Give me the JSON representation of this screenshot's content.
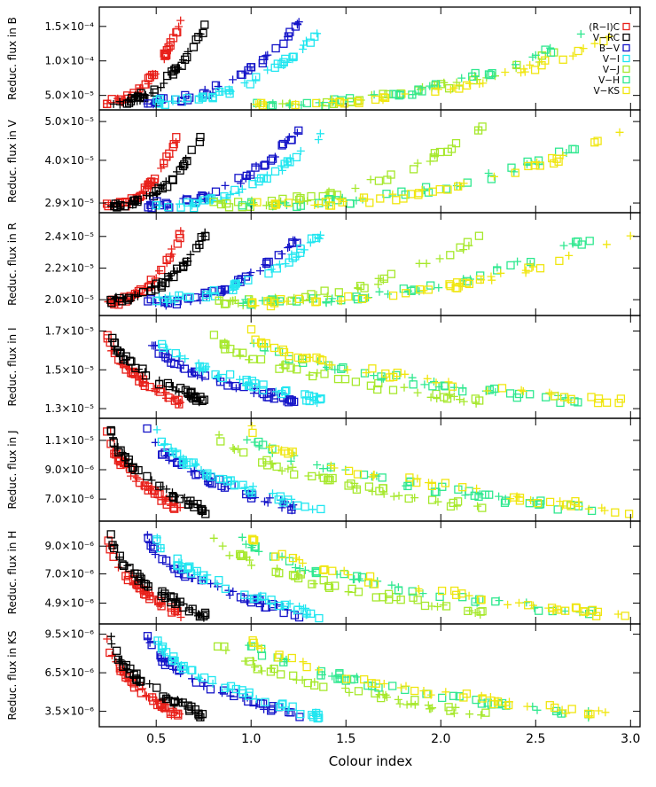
{
  "chart_data": {
    "type": "scatter",
    "xlabel": "Colour index",
    "xlim": [
      0.2,
      3.05
    ],
    "xticks": [
      "0.5",
      "1.0",
      "1.5",
      "2.0",
      "2.5",
      "3.0"
    ],
    "legend": {
      "position": "top-right",
      "entries": [
        {
          "label": "(R−I)C",
          "color": "#e8201a"
        },
        {
          "label": "V−RC",
          "color": "#000000"
        },
        {
          "label": "B−V",
          "color": "#1414c8"
        },
        {
          "label": "V−I",
          "color": "#22e6f0"
        },
        {
          "label": "V−J",
          "color": "#a6e82c"
        },
        {
          "label": "V−H",
          "color": "#30e890"
        },
        {
          "label": "V−KS",
          "color": "#f0e610"
        }
      ]
    },
    "panels": [
      {
        "ylabel": "Reduc. flux in B",
        "ylim": [
          2.9e-05,
          0.000178
        ],
        "yticks": [
          {
            "value": 5e-05,
            "label": "5.0×10⁻⁵"
          },
          {
            "value": 0.0001,
            "label": "1.0×10⁻⁴"
          },
          {
            "value": 0.00015,
            "label": "1.5×10⁻⁴"
          }
        ],
        "shape": "rise",
        "series": [
          {
            "name": "(R−I)C",
            "color": "#e8201a",
            "x_start": 0.24,
            "x_end": 0.63,
            "y_start": 4e-05,
            "y_end": 0.000158
          },
          {
            "name": "V−RC",
            "color": "#000000",
            "x_start": 0.26,
            "x_end": 0.76,
            "y_start": 4e-05,
            "y_end": 0.000152
          },
          {
            "name": "B−V",
            "color": "#1414c8",
            "x_start": 0.45,
            "x_end": 1.26,
            "y_start": 4.2e-05,
            "y_end": 0.000156
          },
          {
            "name": "V−I",
            "color": "#22e6f0",
            "x_start": 0.5,
            "x_end": 1.37,
            "y_start": 4e-05,
            "y_end": 0.000145
          },
          {
            "name": "V−J",
            "color": "#a6e82c",
            "x_start": 0.8,
            "x_end": 2.6,
            "y_start": 3.2e-05,
            "y_end": 0.00011
          },
          {
            "name": "V−H",
            "color": "#30e890",
            "x_start": 0.95,
            "x_end": 2.8,
            "y_start": 3.5e-05,
            "y_end": 0.000145
          },
          {
            "name": "V−KS",
            "color": "#f0e610",
            "x_start": 1.0,
            "x_end": 2.95,
            "y_start": 3.6e-05,
            "y_end": 0.000138
          }
        ]
      },
      {
        "ylabel": "Reduc. flux in V",
        "ylim": [
          2.65e-05,
          5.3e-05
        ],
        "yticks": [
          {
            "value": 2.9e-05,
            "label": "2.9×10⁻⁵"
          },
          {
            "value": 4e-05,
            "label": "4.0×10⁻⁵"
          },
          {
            "value": 5e-05,
            "label": "5.0×10⁻⁵"
          }
        ],
        "shape": "rise",
        "series": [
          {
            "name": "(R−I)C",
            "color": "#e8201a",
            "x_start": 0.24,
            "x_end": 0.63,
            "y_start": 2.8e-05,
            "y_end": 4.8e-05
          },
          {
            "name": "V−RC",
            "color": "#000000",
            "x_start": 0.26,
            "x_end": 0.76,
            "y_start": 2.8e-05,
            "y_end": 4.8e-05
          },
          {
            "name": "B−V",
            "color": "#1414c8",
            "x_start": 0.45,
            "x_end": 1.26,
            "y_start": 2.85e-05,
            "y_end": 4.85e-05
          },
          {
            "name": "V−I",
            "color": "#22e6f0",
            "x_start": 0.5,
            "x_end": 1.37,
            "y_start": 2.8e-05,
            "y_end": 4.7e-05
          },
          {
            "name": "V−J",
            "color": "#a6e82c",
            "x_start": 0.8,
            "x_end": 2.25,
            "y_start": 2.85e-05,
            "y_end": 4.9e-05
          },
          {
            "name": "V−H",
            "color": "#30e890",
            "x_start": 0.95,
            "x_end": 2.8,
            "y_start": 2.85e-05,
            "y_end": 4.5e-05
          },
          {
            "name": "V−KS",
            "color": "#f0e610",
            "x_start": 1.0,
            "x_end": 3.0,
            "y_start": 2.85e-05,
            "y_end": 4.8e-05
          }
        ]
      },
      {
        "ylabel": "Reduc. flux in R",
        "ylim": [
          1.9e-05,
          2.55e-05
        ],
        "yticks": [
          {
            "value": 2e-05,
            "label": "2.0×10⁻⁵"
          },
          {
            "value": 2.2e-05,
            "label": "2.2×10⁻⁵"
          },
          {
            "value": 2.4e-05,
            "label": "2.4×10⁻⁵"
          }
        ],
        "shape": "rise",
        "series": [
          {
            "name": "(R−I)C",
            "color": "#e8201a",
            "x_start": 0.24,
            "x_end": 0.63,
            "y_start": 1.98e-05,
            "y_end": 2.42e-05
          },
          {
            "name": "V−RC",
            "color": "#000000",
            "x_start": 0.26,
            "x_end": 0.76,
            "y_start": 2e-05,
            "y_end": 2.42e-05
          },
          {
            "name": "B−V",
            "color": "#1414c8",
            "x_start": 0.45,
            "x_end": 1.26,
            "y_start": 1.98e-05,
            "y_end": 2.4e-05
          },
          {
            "name": "V−I",
            "color": "#22e6f0",
            "x_start": 0.5,
            "x_end": 1.37,
            "y_start": 2e-05,
            "y_end": 2.42e-05
          },
          {
            "name": "V−J",
            "color": "#a6e82c",
            "x_start": 0.8,
            "x_end": 2.25,
            "y_start": 1.98e-05,
            "y_end": 2.42e-05
          },
          {
            "name": "V−H",
            "color": "#30e890",
            "x_start": 0.95,
            "x_end": 2.8,
            "y_start": 1.98e-05,
            "y_end": 2.4e-05
          },
          {
            "name": "V−KS",
            "color": "#f0e610",
            "x_start": 1.0,
            "x_end": 3.0,
            "y_start": 1.98e-05,
            "y_end": 2.42e-05
          }
        ]
      },
      {
        "ylabel": "Reduc. flux in I",
        "ylim": [
          1.25e-05,
          1.78e-05
        ],
        "yticks": [
          {
            "value": 1.3e-05,
            "label": "1.3×10⁻⁵"
          },
          {
            "value": 1.5e-05,
            "label": "1.5×10⁻⁵"
          },
          {
            "value": 1.7e-05,
            "label": "1.7×10⁻⁵"
          }
        ],
        "shape": "fall",
        "series": [
          {
            "name": "(R−I)C",
            "color": "#e8201a",
            "x_start": 0.24,
            "x_end": 0.63,
            "y_start": 1.7e-05,
            "y_end": 1.33e-05
          },
          {
            "name": "V−RC",
            "color": "#000000",
            "x_start": 0.26,
            "x_end": 0.76,
            "y_start": 1.7e-05,
            "y_end": 1.34e-05
          },
          {
            "name": "B−V",
            "color": "#1414c8",
            "x_start": 0.45,
            "x_end": 1.26,
            "y_start": 1.7e-05,
            "y_end": 1.33e-05
          },
          {
            "name": "V−I",
            "color": "#22e6f0",
            "x_start": 0.5,
            "x_end": 1.37,
            "y_start": 1.7e-05,
            "y_end": 1.34e-05
          },
          {
            "name": "V−J",
            "color": "#a6e82c",
            "x_start": 0.8,
            "x_end": 2.25,
            "y_start": 1.7e-05,
            "y_end": 1.33e-05
          },
          {
            "name": "V−H",
            "color": "#30e890",
            "x_start": 0.95,
            "x_end": 2.8,
            "y_start": 1.7e-05,
            "y_end": 1.33e-05
          },
          {
            "name": "V−KS",
            "color": "#f0e610",
            "x_start": 1.0,
            "x_end": 3.0,
            "y_start": 1.7e-05,
            "y_end": 1.33e-05
          }
        ]
      },
      {
        "ylabel": "Reduc. flux in J",
        "ylim": [
          5.5e-06,
          1.25e-05
        ],
        "yticks": [
          {
            "value": 7e-06,
            "label": "7.0×10⁻⁶"
          },
          {
            "value": 9e-06,
            "label": "9.0×10⁻⁶"
          },
          {
            "value": 1.1e-05,
            "label": "1.1×10⁻⁵"
          }
        ],
        "shape": "fall",
        "series": [
          {
            "name": "(R−I)C",
            "color": "#e8201a",
            "x_start": 0.24,
            "x_end": 0.63,
            "y_start": 1.2e-05,
            "y_end": 6.3e-06
          },
          {
            "name": "V−RC",
            "color": "#000000",
            "x_start": 0.26,
            "x_end": 0.76,
            "y_start": 1.2e-05,
            "y_end": 6.2e-06
          },
          {
            "name": "B−V",
            "color": "#1414c8",
            "x_start": 0.45,
            "x_end": 1.26,
            "y_start": 1.2e-05,
            "y_end": 6.3e-06
          },
          {
            "name": "V−I",
            "color": "#22e6f0",
            "x_start": 0.5,
            "x_end": 1.37,
            "y_start": 1.2e-05,
            "y_end": 6.3e-06
          },
          {
            "name": "V−J",
            "color": "#a6e82c",
            "x_start": 0.8,
            "x_end": 2.25,
            "y_start": 1.2e-05,
            "y_end": 6.3e-06
          },
          {
            "name": "V−H",
            "color": "#30e890",
            "x_start": 0.95,
            "x_end": 2.8,
            "y_start": 1.2e-05,
            "y_end": 6.2e-06
          },
          {
            "name": "V−KS",
            "color": "#f0e610",
            "x_start": 1.0,
            "x_end": 3.0,
            "y_start": 1.2e-05,
            "y_end": 6.2e-06
          }
        ]
      },
      {
        "ylabel": "Reduc. flux in H",
        "ylim": [
          3.4e-06,
          1.08e-05
        ],
        "yticks": [
          {
            "value": 4.9e-06,
            "label": "4.9×10⁻⁶"
          },
          {
            "value": 7e-06,
            "label": "7.0×10⁻⁶"
          },
          {
            "value": 9e-06,
            "label": "9.0×10⁻⁶"
          }
        ],
        "shape": "fall",
        "series": [
          {
            "name": "(R−I)C",
            "color": "#e8201a",
            "x_start": 0.24,
            "x_end": 0.63,
            "y_start": 1e-05,
            "y_end": 4e-06
          },
          {
            "name": "V−RC",
            "color": "#000000",
            "x_start": 0.26,
            "x_end": 0.76,
            "y_start": 1e-05,
            "y_end": 4e-06
          },
          {
            "name": "B−V",
            "color": "#1414c8",
            "x_start": 0.45,
            "x_end": 1.26,
            "y_start": 1e-05,
            "y_end": 4.1e-06
          },
          {
            "name": "V−I",
            "color": "#22e6f0",
            "x_start": 0.5,
            "x_end": 1.37,
            "y_start": 1e-05,
            "y_end": 4e-06
          },
          {
            "name": "V−J",
            "color": "#a6e82c",
            "x_start": 0.8,
            "x_end": 2.25,
            "y_start": 1e-05,
            "y_end": 4.2e-06
          },
          {
            "name": "V−H",
            "color": "#30e890",
            "x_start": 0.95,
            "x_end": 2.8,
            "y_start": 1e-05,
            "y_end": 4.1e-06
          },
          {
            "name": "V−KS",
            "color": "#f0e610",
            "x_start": 1.0,
            "x_end": 3.0,
            "y_start": 1e-05,
            "y_end": 3.9e-06
          }
        ]
      },
      {
        "ylabel": "Reduc. flux in KS",
        "ylim": [
          2.3e-06,
          1.03e-05
        ],
        "yticks": [
          {
            "value": 3.5e-06,
            "label": "3.5×10⁻⁶"
          },
          {
            "value": 6.5e-06,
            "label": "6.5×10⁻⁶"
          },
          {
            "value": 9.5e-06,
            "label": "9.5×10⁻⁶"
          }
        ],
        "shape": "fall",
        "series": [
          {
            "name": "(R−I)C",
            "color": "#e8201a",
            "x_start": 0.24,
            "x_end": 0.63,
            "y_start": 9.6e-06,
            "y_end": 3e-06
          },
          {
            "name": "V−RC",
            "color": "#000000",
            "x_start": 0.26,
            "x_end": 0.76,
            "y_start": 9.6e-06,
            "y_end": 3.1e-06
          },
          {
            "name": "B−V",
            "color": "#1414c8",
            "x_start": 0.45,
            "x_end": 1.26,
            "y_start": 9.6e-06,
            "y_end": 3.1e-06
          },
          {
            "name": "V−I",
            "color": "#22e6f0",
            "x_start": 0.5,
            "x_end": 1.37,
            "y_start": 9.6e-06,
            "y_end": 3.1e-06
          },
          {
            "name": "V−J",
            "color": "#a6e82c",
            "x_start": 0.8,
            "x_end": 2.25,
            "y_start": 9.6e-06,
            "y_end": 3.2e-06
          },
          {
            "name": "V−H",
            "color": "#30e890",
            "x_start": 0.95,
            "x_end": 2.8,
            "y_start": 9.6e-06,
            "y_end": 3.2e-06
          },
          {
            "name": "V−KS",
            "color": "#f0e610",
            "x_start": 1.0,
            "x_end": 3.0,
            "y_start": 9.6e-06,
            "y_end": 3e-06
          }
        ]
      }
    ]
  }
}
